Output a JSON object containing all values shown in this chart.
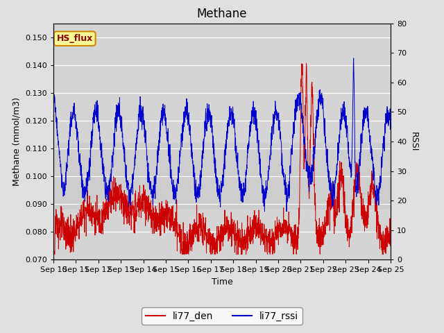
{
  "title": "Methane",
  "ylabel_left": "Methane (mmol/m3)",
  "ylabel_right": "RSSI",
  "xlabel": "Time",
  "ylim_left": [
    0.07,
    0.155
  ],
  "ylim_right": [
    0,
    80
  ],
  "yticks_left": [
    0.07,
    0.08,
    0.09,
    0.1,
    0.11,
    0.12,
    0.13,
    0.14,
    0.15
  ],
  "yticks_right": [
    0,
    10,
    20,
    30,
    40,
    50,
    60,
    70,
    80
  ],
  "xtick_labels": [
    "Sep 10",
    "Sep 11",
    "Sep 12",
    "Sep 13",
    "Sep 14",
    "Sep 15",
    "Sep 16",
    "Sep 17",
    "Sep 18",
    "Sep 19",
    "Sep 20",
    "Sep 21",
    "Sep 22",
    "Sep 23",
    "Sep 24",
    "Sep 25"
  ],
  "legend_entries": [
    "li77_den",
    "li77_rssi"
  ],
  "legend_colors": [
    "#cc0000",
    "#0000cc"
  ],
  "line_color_den": "#cc0000",
  "line_color_rssi": "#0000cc",
  "annotation_text": "HS_flux",
  "annotation_bg": "#ffff99",
  "annotation_border": "#cc8800",
  "background_color": "#e0e0e0",
  "plot_bg": "#d4d4d4",
  "title_fontsize": 12,
  "axis_fontsize": 9,
  "tick_fontsize": 8
}
